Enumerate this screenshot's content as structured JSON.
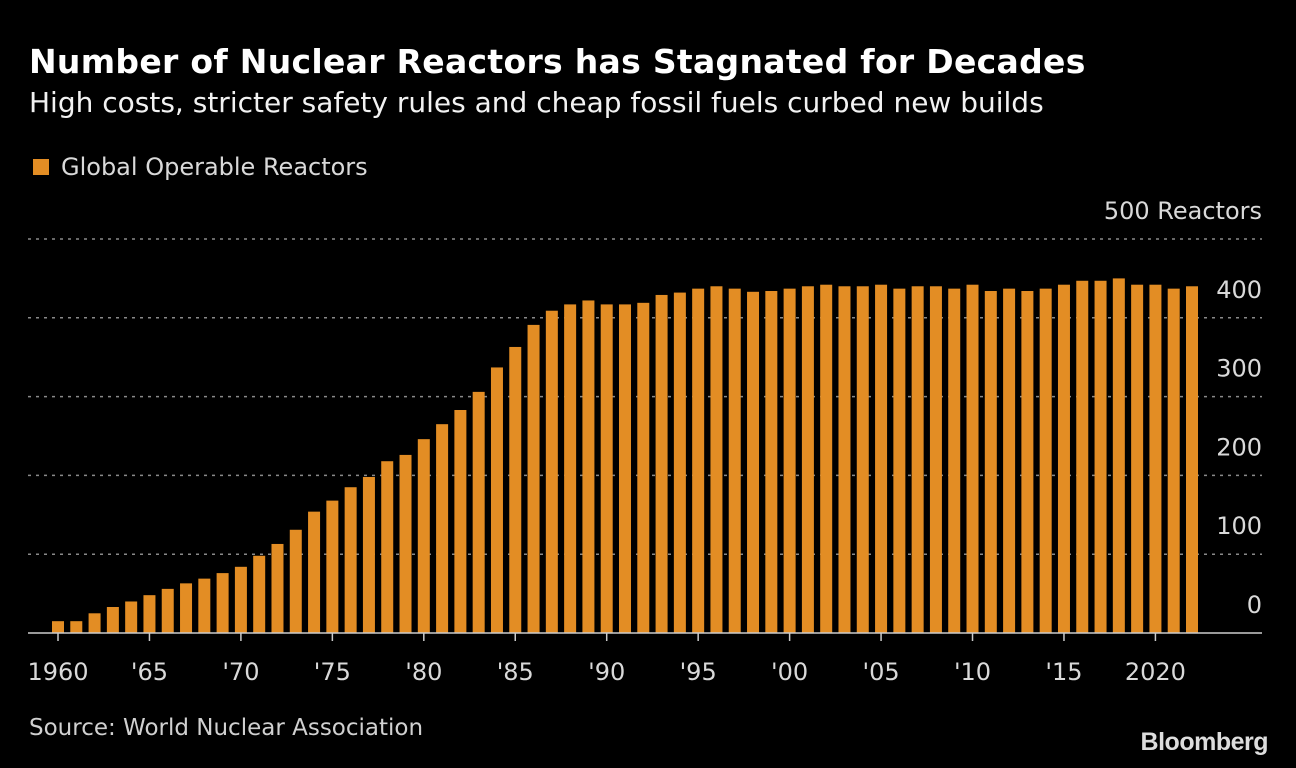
{
  "chart_data": {
    "type": "bar",
    "title": "Number of Nuclear Reactors has Stagnated for Decades",
    "subtitle": "High costs, stricter safety rules and cheap fossil fuels curbed new builds",
    "legend": [
      {
        "name": "Global Operable Reactors",
        "color": "#e38d24"
      }
    ],
    "legend_position": "top-left",
    "y_unit_label": "500 Reactors",
    "ylim": [
      0,
      500
    ],
    "y_ticks": [
      0,
      100,
      200,
      300,
      400
    ],
    "y_tick_labels": [
      "0",
      "100",
      "200",
      "300",
      "400"
    ],
    "y_axis_side": "right",
    "grid": true,
    "x_tick_years": [
      1960,
      1965,
      1970,
      1975,
      1980,
      1985,
      1990,
      1995,
      2000,
      2005,
      2010,
      2015,
      2020
    ],
    "x_tick_labels": [
      "1960",
      "'65",
      "'70",
      "'75",
      "'80",
      "'85",
      "'90",
      "'95",
      "'00",
      "'05",
      "'10",
      "'15",
      "2020"
    ],
    "categories": [
      1960,
      1961,
      1962,
      1963,
      1964,
      1965,
      1966,
      1967,
      1968,
      1969,
      1970,
      1971,
      1972,
      1973,
      1974,
      1975,
      1976,
      1977,
      1978,
      1979,
      1980,
      1981,
      1982,
      1983,
      1984,
      1985,
      1986,
      1987,
      1988,
      1989,
      1990,
      1991,
      1992,
      1993,
      1994,
      1995,
      1996,
      1997,
      1998,
      1999,
      2000,
      2001,
      2002,
      2003,
      2004,
      2005,
      2006,
      2007,
      2008,
      2009,
      2010,
      2011,
      2012,
      2013,
      2014,
      2015,
      2016,
      2017,
      2018,
      2019,
      2020,
      2021,
      2022
    ],
    "series": [
      {
        "name": "Global Operable Reactors",
        "values": [
          15,
          15,
          25,
          33,
          40,
          48,
          56,
          63,
          69,
          76,
          84,
          98,
          113,
          131,
          154,
          168,
          185,
          198,
          218,
          226,
          246,
          265,
          283,
          306,
          337,
          363,
          391,
          409,
          417,
          422,
          417,
          417,
          419,
          429,
          432,
          437,
          440,
          437,
          433,
          434,
          437,
          440,
          442,
          440,
          440,
          442,
          437,
          440,
          440,
          437,
          442,
          434,
          437,
          434,
          437,
          442,
          447,
          447,
          450,
          442,
          442,
          437,
          440
        ]
      }
    ],
    "source": "Source: World Nuclear Association"
  },
  "branding": {
    "logo": "Bloomberg"
  },
  "colors": {
    "bar": "#e38d24",
    "background": "#000000",
    "grid": "#8a8a8a"
  }
}
